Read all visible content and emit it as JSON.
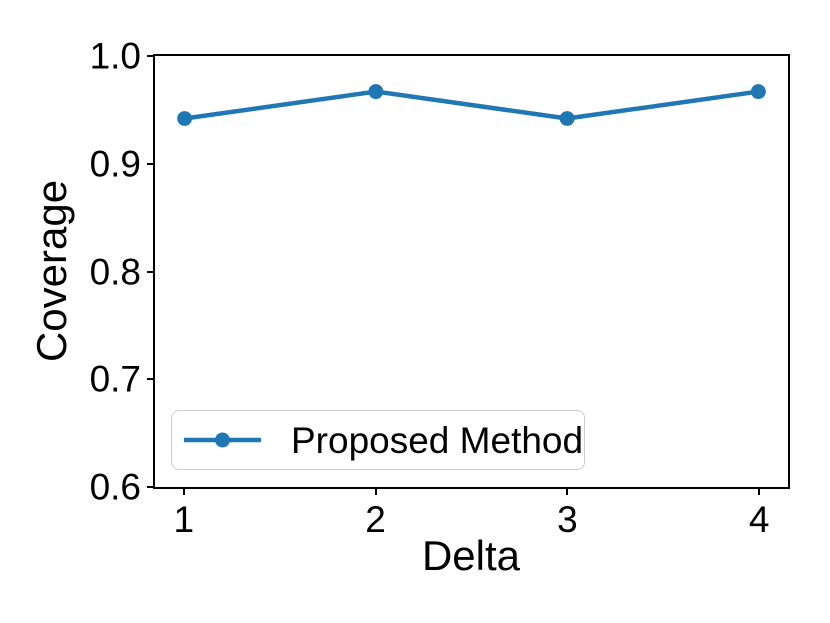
{
  "chart_data": {
    "type": "line",
    "title": "",
    "xlabel": "Delta",
    "ylabel": "Coverage",
    "x": [
      1,
      2,
      3,
      4
    ],
    "series": [
      {
        "name": "Proposed Method",
        "values": [
          0.942,
          0.967,
          0.942,
          0.967
        ],
        "color": "#1f77b4",
        "marker": "circle",
        "line_width": 4.5,
        "marker_radius": 7.5
      }
    ],
    "xlim": [
      0.85,
      4.15
    ],
    "ylim": [
      0.6,
      1.0
    ],
    "xticks": [
      1,
      2,
      3,
      4
    ],
    "xticklabels": [
      "1",
      "2",
      "3",
      "4"
    ],
    "yticks": [
      0.6,
      0.7,
      0.8,
      0.9,
      1.0
    ],
    "yticklabels": [
      "0.6",
      "0.7",
      "0.8",
      "0.9",
      "1.0"
    ],
    "grid": false,
    "legend": {
      "position": "lower left",
      "entries": [
        {
          "label": "Proposed Method"
        }
      ]
    },
    "colors": {
      "spine": "#000000",
      "text": "#000000",
      "background": "#ffffff",
      "legend_border": "#cccccc"
    }
  }
}
